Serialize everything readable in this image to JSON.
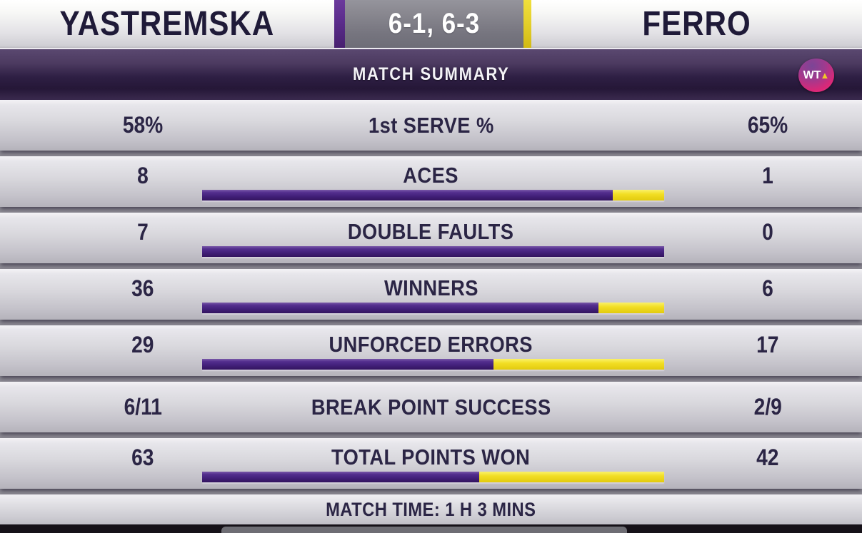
{
  "header": {
    "player_left": "YASTREMSKA",
    "score": "6-1, 6-3",
    "player_right": "FERRO"
  },
  "summary_bar": {
    "title": "MATCH SUMMARY",
    "logo_text": "WT",
    "logo_triangle": "▲"
  },
  "stats_rows": [
    {
      "left": "58%",
      "label": "1st SERVE %",
      "right": "65%",
      "has_bar": false,
      "left_num": null,
      "right_num": null
    },
    {
      "left": "8",
      "label": "ACES",
      "right": "1",
      "has_bar": true,
      "left_num": 8,
      "right_num": 1
    },
    {
      "left": "7",
      "label": "DOUBLE FAULTS",
      "right": "0",
      "has_bar": true,
      "left_num": 7,
      "right_num": 0
    },
    {
      "left": "36",
      "label": "WINNERS",
      "right": "6",
      "has_bar": true,
      "left_num": 36,
      "right_num": 6
    },
    {
      "left": "29",
      "label": "UNFORCED ERRORS",
      "right": "17",
      "has_bar": true,
      "left_num": 29,
      "right_num": 17
    },
    {
      "left": "6/11",
      "label": "BREAK POINT SUCCESS",
      "right": "2/9",
      "has_bar": false,
      "left_num": null,
      "right_num": null
    },
    {
      "left": "63",
      "label": "TOTAL POINTS WON",
      "right": "42",
      "has_bar": true,
      "left_num": 63,
      "right_num": 42
    }
  ],
  "footer": {
    "match_time": "MATCH TIME: 1 H 3 MINS"
  },
  "colors": {
    "bar_purple": "#42207a",
    "bar_yellow": "#f2de24",
    "score_strip_purple": "#5b2c8c",
    "score_strip_yellow": "#e3cf2a",
    "stat_text": "#2b2545",
    "header_text": "#1f1a38"
  },
  "chart_data": {
    "type": "bar",
    "title": "MATCH SUMMARY",
    "subtitle": "YASTREMSKA 6-1, 6-3 FERRO",
    "categories": [
      "1st SERVE %",
      "ACES",
      "DOUBLE FAULTS",
      "WINNERS",
      "UNFORCED ERRORS",
      "BREAK POINT SUCCESS",
      "TOTAL POINTS WON"
    ],
    "series": [
      {
        "name": "YASTREMSKA",
        "values": [
          "58%",
          8,
          7,
          36,
          29,
          "6/11",
          63
        ]
      },
      {
        "name": "FERRO",
        "values": [
          "65%",
          1,
          0,
          6,
          17,
          "2/9",
          42
        ]
      }
    ],
    "bars_shown_for": [
      "ACES",
      "DOUBLE FAULTS",
      "WINNERS",
      "UNFORCED ERRORS",
      "TOTAL POINTS WON"
    ],
    "bar_encoding": "purple segment = YASTREMSKA share, yellow segment = FERRO share of row total",
    "legend_position": "none",
    "annotations": [
      "MATCH TIME: 1 H 3 MINS"
    ]
  }
}
